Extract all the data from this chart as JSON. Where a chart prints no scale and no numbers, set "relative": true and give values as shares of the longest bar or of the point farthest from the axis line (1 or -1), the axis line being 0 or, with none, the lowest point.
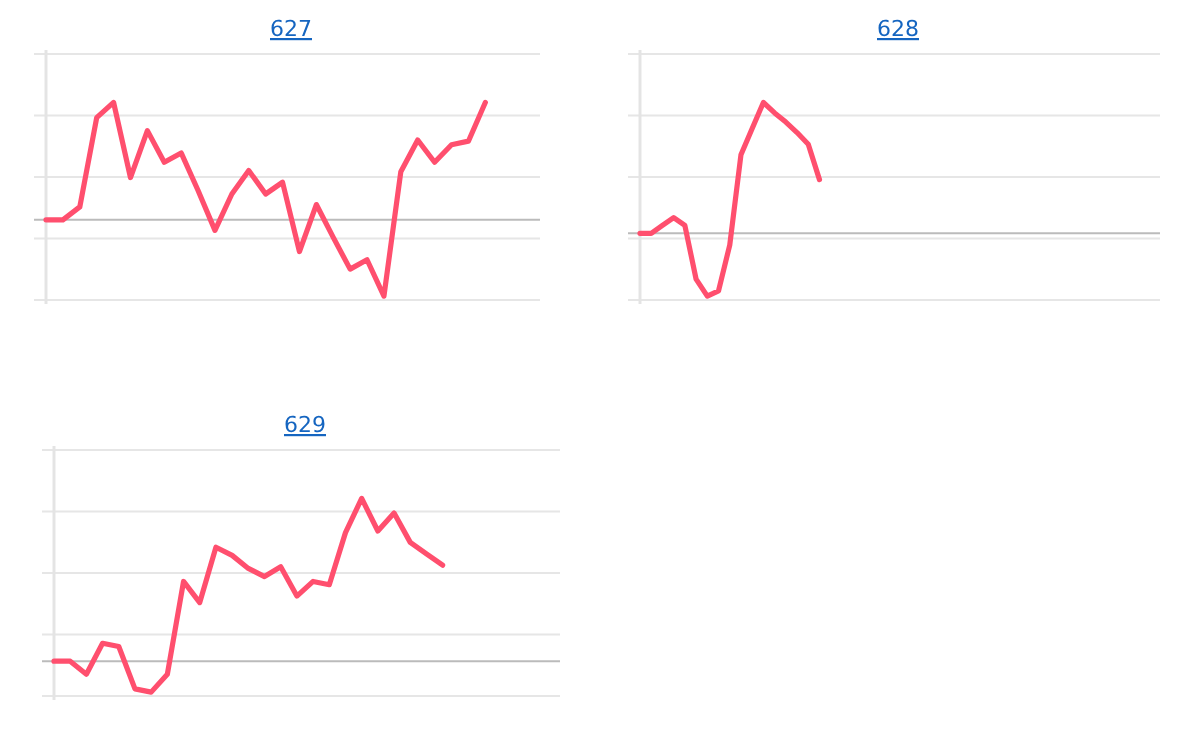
{
  "chart_data": [
    {
      "type": "line",
      "title": "627",
      "relative": true,
      "grid": "y",
      "categories": [
        null,
        null,
        null,
        null,
        null,
        null,
        null,
        null,
        null,
        null,
        null,
        null,
        null,
        null,
        null,
        null,
        null,
        null,
        null,
        null,
        null,
        null,
        null,
        null,
        null,
        null,
        null,
        null,
        null,
        null
      ],
      "series": [
        {
          "color": "#ff4f6e",
          "values": [
            0,
            0,
            0.11,
            0.87,
            1,
            0.36,
            0.76,
            0.49,
            0.57,
            0.25,
            -0.09,
            0.22,
            0.42,
            0.22,
            0.32,
            -0.27,
            0.13,
            -0.15,
            -0.42,
            -0.34,
            -0.65,
            0.41,
            0.68,
            0.49,
            0.64,
            0.67,
            1,
            null,
            null,
            null
          ]
        }
      ]
    },
    {
      "type": "line",
      "title": "628",
      "relative": true,
      "grid": "y",
      "categories": [
        null,
        null,
        null,
        null,
        null,
        null,
        null,
        null,
        null,
        null,
        null,
        null,
        null,
        null,
        null,
        null,
        null,
        null,
        null,
        null,
        null,
        null,
        null,
        null,
        null,
        null,
        null,
        null,
        null,
        null,
        null,
        null,
        null,
        null,
        null,
        null,
        null,
        null,
        null,
        null,
        null,
        null,
        null,
        null,
        null,
        null,
        null
      ],
      "series": [
        {
          "color": "#ff4f6e",
          "values": [
            0,
            0,
            0.06,
            0.12,
            0.06,
            -0.35,
            -0.48,
            -0.44,
            -0.09,
            0.6,
            0.8,
            1,
            0.92,
            0.85,
            0.77,
            0.68,
            0.41,
            null,
            null,
            null,
            null,
            null,
            null,
            null,
            null,
            null,
            null,
            null,
            null,
            null,
            null,
            null,
            null,
            null,
            null,
            null,
            null,
            null,
            null,
            null,
            null,
            null,
            null,
            null,
            null,
            null,
            null
          ]
        }
      ]
    },
    {
      "type": "line",
      "title": "629",
      "relative": true,
      "grid": "y",
      "categories": [
        null,
        null,
        null,
        null,
        null,
        null,
        null,
        null,
        null,
        null,
        null,
        null,
        null,
        null,
        null,
        null,
        null,
        null,
        null,
        null,
        null,
        null,
        null,
        null,
        null,
        null,
        null,
        null,
        null,
        null,
        null,
        null
      ],
      "series": [
        {
          "color": "#ff4f6e",
          "values": [
            0,
            0,
            -0.08,
            0.11,
            0.09,
            -0.17,
            -0.19,
            -0.08,
            0.49,
            0.36,
            0.7,
            0.65,
            0.57,
            0.52,
            0.58,
            0.4,
            0.49,
            0.47,
            0.79,
            1,
            0.8,
            0.91,
            0.73,
            0.66,
            0.59,
            null,
            null,
            null,
            null,
            null,
            null,
            null
          ]
        }
      ]
    }
  ]
}
